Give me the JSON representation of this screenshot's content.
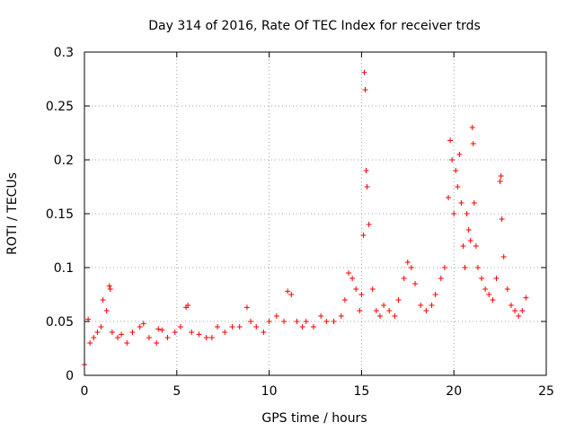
{
  "chart_data": {
    "type": "scatter",
    "title": "Day 314 of 2016, Rate Of TEC Index for receiver trds",
    "xlabel": "GPS time / hours",
    "ylabel": "ROTI / TECUs",
    "xlim": [
      0,
      25
    ],
    "ylim": [
      0,
      0.3
    ],
    "x_ticks": [
      "0",
      "5",
      "10",
      "15",
      "20",
      "25"
    ],
    "y_ticks": [
      "0",
      "0.05",
      "0.1",
      "0.15",
      "0.2",
      "0.25",
      "0.3"
    ],
    "x_tick_values": [
      0,
      5,
      10,
      15,
      20,
      25
    ],
    "y_tick_values": [
      0,
      0.05,
      0.1,
      0.15,
      0.2,
      0.25,
      0.3
    ],
    "grid": true,
    "marker": "+",
    "marker_color": "#ff0000",
    "series": [
      {
        "name": "ROTI",
        "x": [
          0.0,
          0.2,
          0.3,
          0.5,
          0.7,
          0.9,
          1.0,
          1.2,
          1.35,
          1.4,
          1.5,
          1.8,
          2.0,
          2.3,
          2.6,
          3.0,
          3.2,
          3.5,
          3.9,
          4.0,
          4.2,
          4.5,
          4.9,
          5.2,
          5.5,
          5.6,
          5.8,
          6.2,
          6.6,
          6.9,
          7.2,
          7.6,
          8.0,
          8.4,
          8.8,
          9.0,
          9.3,
          9.7,
          10.0,
          10.4,
          10.8,
          11.0,
          11.2,
          11.5,
          11.8,
          12.0,
          12.4,
          12.8,
          13.1,
          13.5,
          13.9,
          14.1,
          14.3,
          14.5,
          14.7,
          14.9,
          15.0,
          15.1,
          15.15,
          15.2,
          15.25,
          15.3,
          15.4,
          15.6,
          15.8,
          16.0,
          16.2,
          16.5,
          16.8,
          17.0,
          17.3,
          17.5,
          17.7,
          17.9,
          18.2,
          18.5,
          18.8,
          19.0,
          19.3,
          19.5,
          19.7,
          19.8,
          19.9,
          20.0,
          20.1,
          20.2,
          20.3,
          20.4,
          20.5,
          20.6,
          20.7,
          20.8,
          20.9,
          21.0,
          21.05,
          21.1,
          21.2,
          21.3,
          21.5,
          21.7,
          21.9,
          22.1,
          22.3,
          22.5,
          22.55,
          22.6,
          22.7,
          22.9,
          23.1,
          23.3,
          23.5,
          23.7,
          23.9
        ],
        "y": [
          0.01,
          0.052,
          0.03,
          0.035,
          0.04,
          0.045,
          0.07,
          0.06,
          0.083,
          0.08,
          0.04,
          0.035,
          0.038,
          0.03,
          0.04,
          0.045,
          0.048,
          0.035,
          0.03,
          0.043,
          0.042,
          0.035,
          0.04,
          0.045,
          0.063,
          0.065,
          0.04,
          0.038,
          0.035,
          0.035,
          0.045,
          0.04,
          0.045,
          0.045,
          0.063,
          0.05,
          0.045,
          0.04,
          0.05,
          0.055,
          0.05,
          0.078,
          0.075,
          0.05,
          0.045,
          0.05,
          0.045,
          0.055,
          0.05,
          0.05,
          0.055,
          0.07,
          0.095,
          0.09,
          0.08,
          0.06,
          0.075,
          0.13,
          0.281,
          0.265,
          0.19,
          0.175,
          0.14,
          0.08,
          0.06,
          0.055,
          0.065,
          0.06,
          0.055,
          0.07,
          0.09,
          0.105,
          0.1,
          0.085,
          0.065,
          0.06,
          0.065,
          0.075,
          0.09,
          0.1,
          0.165,
          0.218,
          0.2,
          0.15,
          0.19,
          0.175,
          0.205,
          0.16,
          0.12,
          0.1,
          0.15,
          0.135,
          0.125,
          0.23,
          0.215,
          0.16,
          0.12,
          0.1,
          0.09,
          0.08,
          0.075,
          0.07,
          0.09,
          0.18,
          0.185,
          0.145,
          0.11,
          0.08,
          0.065,
          0.06,
          0.055,
          0.06,
          0.072
        ]
      }
    ]
  }
}
